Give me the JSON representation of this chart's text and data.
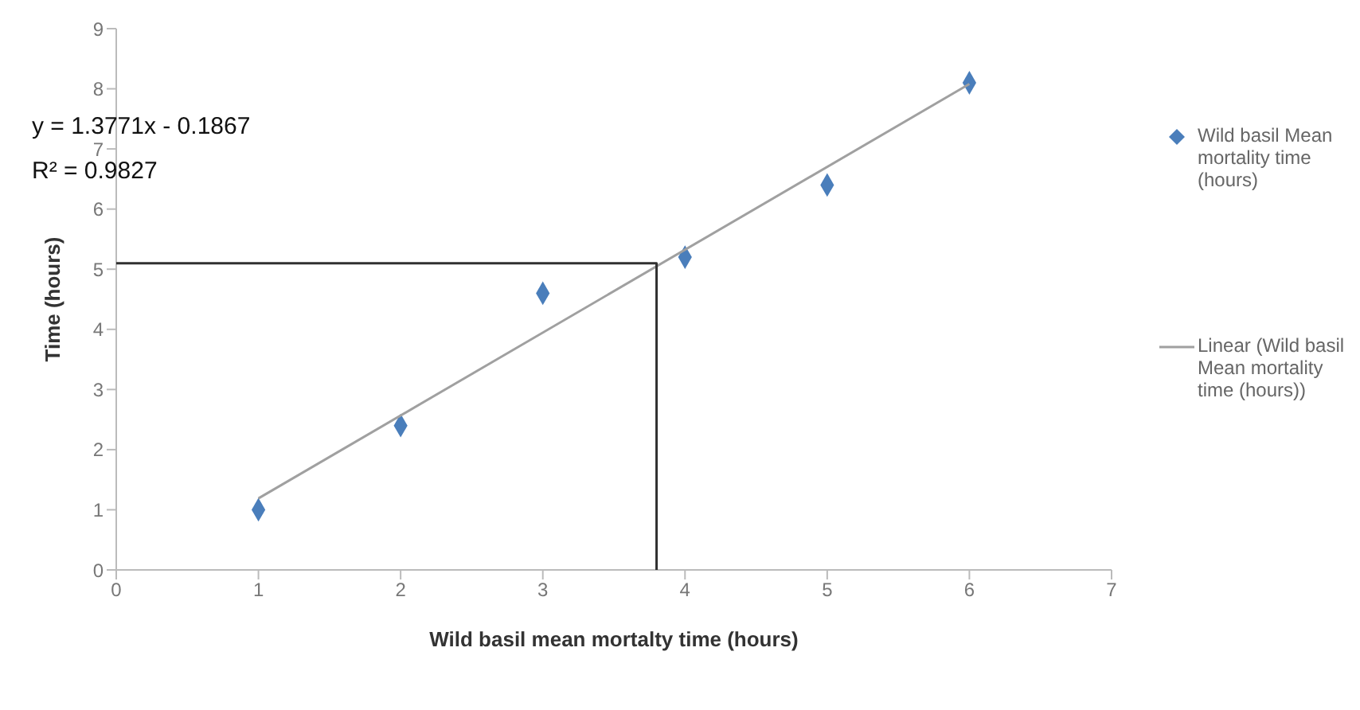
{
  "chart_data": {
    "type": "scatter",
    "xlabel": "Wild basil mean mortalty time (hours)",
    "ylabel": "Time (hours)",
    "xlim": [
      0,
      7
    ],
    "xticks": [
      0,
      1,
      2,
      3,
      4,
      5,
      6,
      7
    ],
    "ylim": [
      0,
      9
    ],
    "yticks": [
      0,
      1,
      2,
      3,
      4,
      5,
      6,
      7,
      8,
      9
    ],
    "grid": false,
    "legend": "right",
    "annotations": [
      "y = 1.3771x - 0.1867",
      "R² = 0.9827"
    ],
    "series": [
      {
        "name": "Wild basil Mean mortality time (hours)",
        "marker": "diamond",
        "color": "#4a7ebb",
        "x": [
          1,
          2,
          3,
          4,
          5,
          6
        ],
        "values": [
          1.0,
          2.4,
          4.6,
          5.2,
          6.4,
          8.1
        ]
      },
      {
        "name": "Linear (Wild basil Mean mortality time (hours))",
        "type": "line",
        "color": "#a0a0a0",
        "x": [
          1,
          6
        ],
        "values": [
          1.19,
          8.08
        ]
      },
      {
        "type": "line",
        "color": "#303030",
        "x": [
          0,
          3.8,
          3.8
        ],
        "values": [
          5.1,
          5.1,
          0
        ]
      }
    ]
  }
}
